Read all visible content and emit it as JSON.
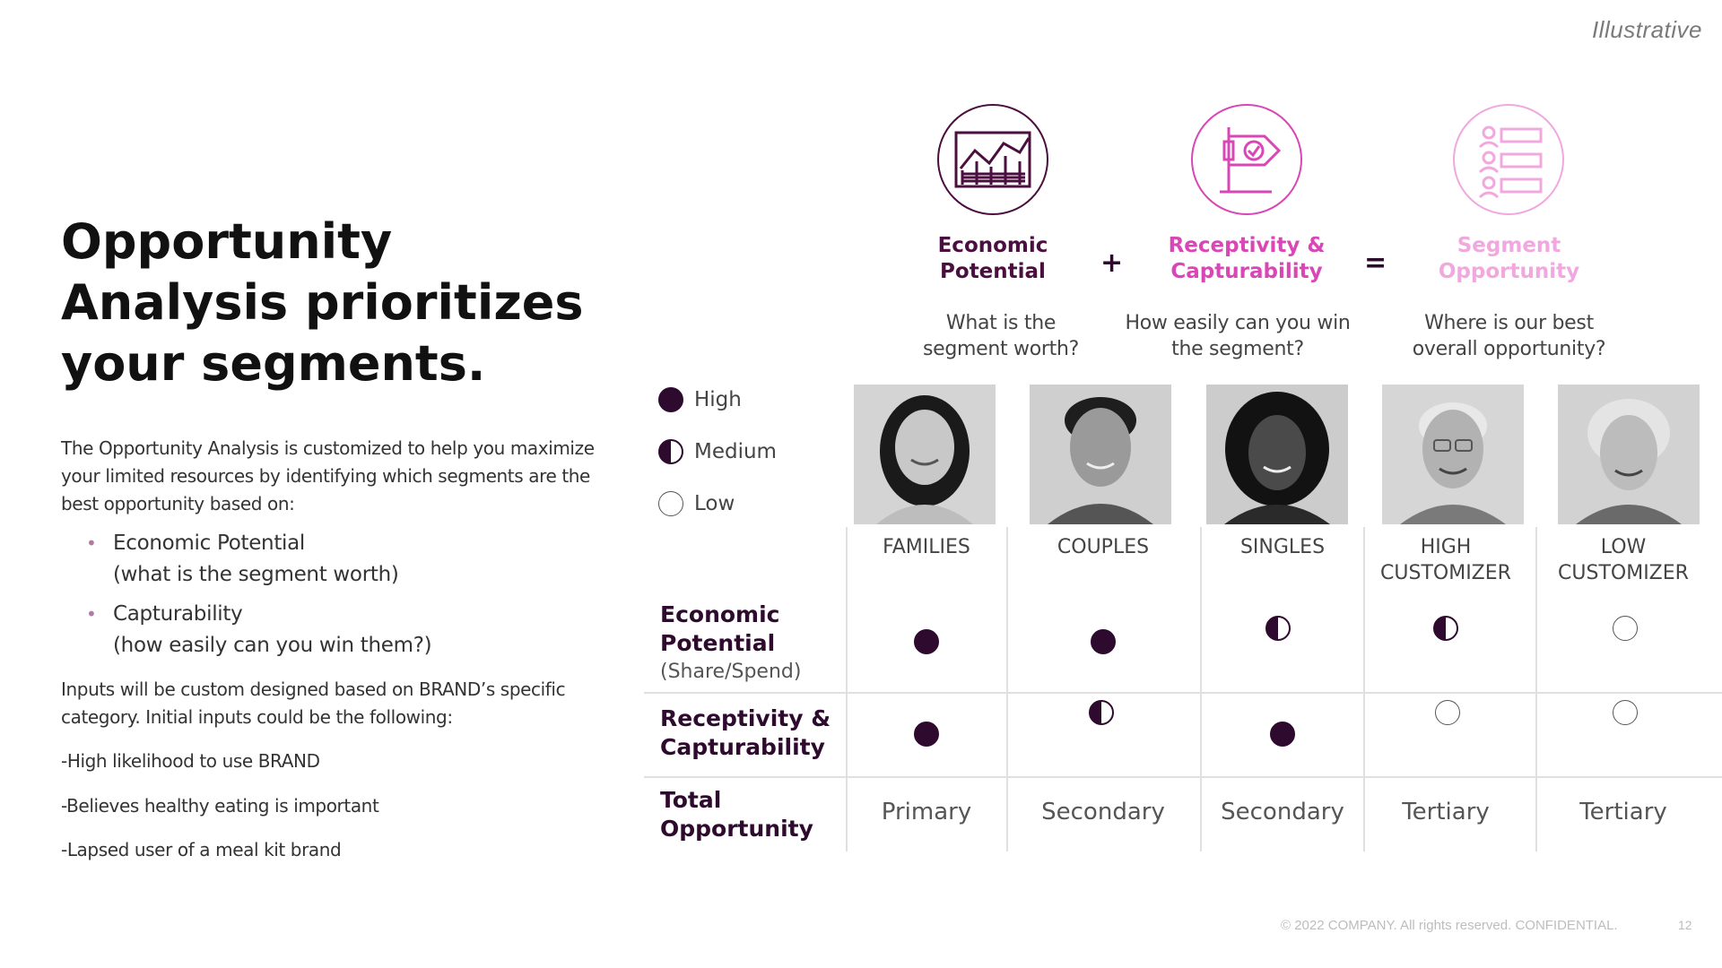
{
  "tag": "Illustrative",
  "title": "Opportunity Analysis prioritizes your segments.",
  "intro": "The Opportunity Analysis is customized to help you maximize your limited resources by identifying which segments are the best opportunity based on:",
  "bullets": [
    {
      "label": "Economic Potential",
      "sub": "(what is the segment worth)"
    },
    {
      "label": "Capturability",
      "sub": "(how easily can you win them?)"
    }
  ],
  "inputs_text": "Inputs will be custom designed based on BRAND’s specific category. Initial inputs could be the following:",
  "inputs": [
    "-High likelihood to use BRAND",
    "-Believes healthy eating is important",
    "-Lapsed user of a meal kit brand"
  ],
  "metrics": [
    {
      "title": "Economic Potential",
      "question": "What is the segment worth?",
      "color": "#4a0f3f",
      "icon": "chart-icon"
    },
    {
      "title": "Receptivity & Capturability",
      "question": "How easily can you win the segment?",
      "color": "#d946b5",
      "icon": "flag-icon"
    },
    {
      "title": "Segment Opportunity",
      "question": "Where is our best overall opportunity?",
      "color": "#f0a8de",
      "icon": "people-list-icon"
    }
  ],
  "operators": {
    "plus": "+",
    "equals": "="
  },
  "legend": [
    {
      "level": "full",
      "label": "High"
    },
    {
      "level": "half",
      "label": "Medium"
    },
    {
      "level": "empty",
      "label": "Low"
    }
  ],
  "segments": [
    {
      "name": "FAMILIES",
      "economic": "full",
      "receptivity": "full",
      "total": "Primary"
    },
    {
      "name": "COUPLES",
      "economic": "full",
      "receptivity": "half",
      "total": "Secondary"
    },
    {
      "name": "SINGLES",
      "economic": "half",
      "receptivity": "full",
      "total": "Secondary"
    },
    {
      "name": "HIGH CUSTOMIZER",
      "economic": "half",
      "receptivity": "empty",
      "total": "Tertiary"
    },
    {
      "name": "LOW CUSTOMIZER",
      "economic": "empty",
      "receptivity": "empty",
      "total": "Tertiary"
    }
  ],
  "rows": {
    "economic": {
      "label": "Economic Potential",
      "sub": "(Share/Spend)"
    },
    "receptivity": {
      "label": "Receptivity & Capturability"
    },
    "total": {
      "label": "Total Opportunity"
    }
  },
  "footer": "© 2022 COMPANY. All rights reserved. CONFIDENTIAL.",
  "page": "12"
}
